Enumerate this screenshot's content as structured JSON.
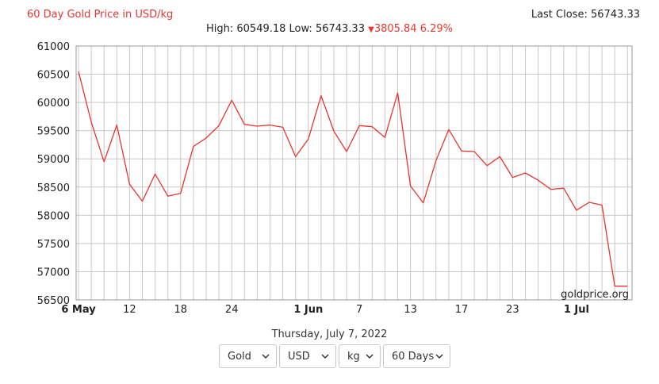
{
  "header": {
    "title": "60 Day Gold Price in USD/kg",
    "last_close": "Last Close: 56743.33",
    "high_low": "High: 60549.18 Low: 56743.33",
    "change": "3805.84 6.29%"
  },
  "footer": {
    "date": "Thursday, July 7, 2022"
  },
  "controls": {
    "metal": "Gold",
    "currency": "USD",
    "unit": "kg",
    "period": "60 Days"
  },
  "colors": {
    "line": "#e8352f",
    "grid": "#c8c8c8",
    "accent": "#e8352f"
  },
  "chart_data": {
    "type": "line",
    "title": "60 Day Gold Price in USD/kg",
    "watermark": "goldprice.org",
    "xlabel": "",
    "ylabel": "",
    "ylim": [
      56500,
      61000
    ],
    "yticks": [
      56500,
      57000,
      57500,
      58000,
      58500,
      59000,
      59500,
      60000,
      60500,
      61000
    ],
    "x_ticks": [
      {
        "i": 0,
        "label": "6 May",
        "bold": true
      },
      {
        "i": 4,
        "label": "12",
        "bold": false
      },
      {
        "i": 8,
        "label": "18",
        "bold": false
      },
      {
        "i": 12,
        "label": "24",
        "bold": false
      },
      {
        "i": 18,
        "label": "1 Jun",
        "bold": true
      },
      {
        "i": 22,
        "label": "7",
        "bold": false
      },
      {
        "i": 26,
        "label": "13",
        "bold": false
      },
      {
        "i": 30,
        "label": "17",
        "bold": false
      },
      {
        "i": 34,
        "label": "23",
        "bold": false
      },
      {
        "i": 39,
        "label": "1 Jul",
        "bold": true
      }
    ],
    "grid": true,
    "series": [
      {
        "values": [
          60549,
          59650,
          58950,
          59600,
          58550,
          58250,
          58730,
          58340,
          58390,
          59220,
          59370,
          59590,
          60040,
          59610,
          59580,
          59600,
          59560,
          59040,
          59350,
          60120,
          59490,
          59130,
          59590,
          59570,
          59380,
          60170,
          58520,
          58220,
          58970,
          59520,
          59140,
          59130,
          58880,
          59040,
          58670,
          58750,
          58620,
          58460,
          58480,
          58090,
          58230,
          58180,
          56743,
          56743
        ]
      }
    ]
  }
}
